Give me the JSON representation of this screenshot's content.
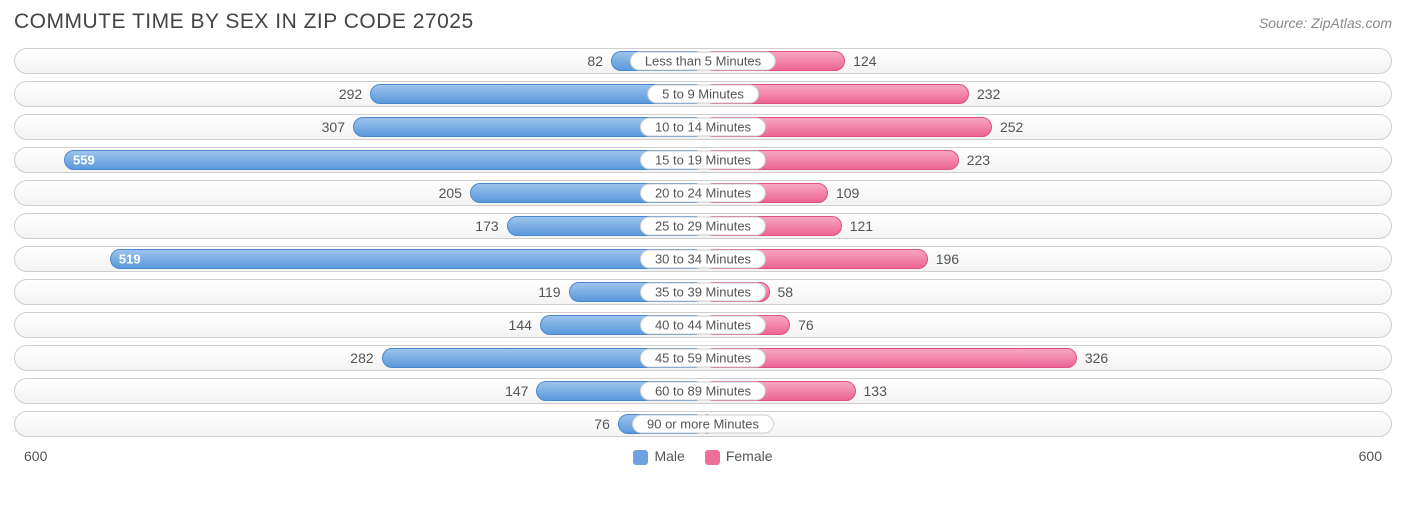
{
  "header": {
    "title": "COMMUTE TIME BY SEX IN ZIP CODE 27025",
    "source": "Source: ZipAtlas.com"
  },
  "chart": {
    "type": "diverging-bar",
    "axis_max": 600,
    "axis_left_label": "600",
    "axis_right_label": "600",
    "male_color": "#6da3e0",
    "female_color": "#ef6f9b",
    "track_border": "#cfcfcf",
    "track_bg": "#fafafa",
    "text_color": "#555555",
    "inside_threshold": 480,
    "legend": [
      {
        "label": "Male",
        "color": "#6da3e0"
      },
      {
        "label": "Female",
        "color": "#ef6f9b"
      }
    ],
    "rows": [
      {
        "category": "Less than 5 Minutes",
        "male": 82,
        "female": 124
      },
      {
        "category": "5 to 9 Minutes",
        "male": 292,
        "female": 232
      },
      {
        "category": "10 to 14 Minutes",
        "male": 307,
        "female": 252
      },
      {
        "category": "15 to 19 Minutes",
        "male": 559,
        "female": 223
      },
      {
        "category": "20 to 24 Minutes",
        "male": 205,
        "female": 109
      },
      {
        "category": "25 to 29 Minutes",
        "male": 173,
        "female": 121
      },
      {
        "category": "30 to 34 Minutes",
        "male": 519,
        "female": 196
      },
      {
        "category": "35 to 39 Minutes",
        "male": 119,
        "female": 58
      },
      {
        "category": "40 to 44 Minutes",
        "male": 144,
        "female": 76
      },
      {
        "category": "45 to 59 Minutes",
        "male": 282,
        "female": 326
      },
      {
        "category": "60 to 89 Minutes",
        "male": 147,
        "female": 133
      },
      {
        "category": "90 or more Minutes",
        "male": 76,
        "female": 7
      }
    ]
  }
}
